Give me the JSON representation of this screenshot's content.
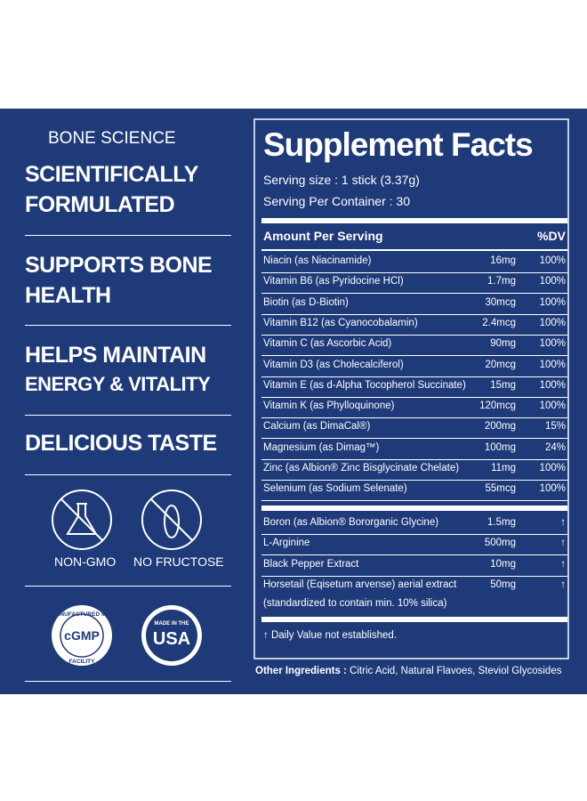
{
  "brand": "BONE SCIENCE",
  "claims": [
    [
      "SCIENTIFICALLY",
      "FORMULATED"
    ],
    [
      "SUPPORTS BONE",
      "HEALTH"
    ],
    [
      "HELPS MAINTAIN",
      "ENERGY & VITALITY"
    ],
    [
      "DELICIOUS TASTE"
    ]
  ],
  "icons": [
    "NON-GMO",
    "NO FRUCTOSE"
  ],
  "badges": {
    "cgmp": {
      "top": "MANUFACTURED IN A",
      "bottom": "FACILITY",
      "center": "cGMP"
    },
    "usa": {
      "top": "MADE IN THE",
      "center": "USA"
    }
  },
  "facts": {
    "title": "Supplement Facts",
    "serving_size": "Serving size : 1 stick (3.37g)",
    "servings": "Serving Per Container : 30",
    "header": {
      "amount": "Amount Per Serving",
      "dv": "%DV"
    },
    "rows": [
      [
        "Niacin (as Niacinamide)",
        "16mg",
        "100%"
      ],
      [
        "Vitamin B6 (as Pyridocine HCl)",
        "1.7mg",
        "100%"
      ],
      [
        "Biotin (as D-Biotin)",
        "30mcg",
        "100%"
      ],
      [
        "Vitamin B12 (as Cyanocobalamin)",
        "2.4mcg",
        "100%"
      ],
      [
        "Vitamin C (as Ascorbic Acid)",
        "90mg",
        "100%"
      ],
      [
        "Vitamin D3 (as Cholecalciferol)",
        "20mcg",
        "100%"
      ],
      [
        "Vitamin E (as d-Alpha Tocopherol Succinate)",
        "15mg",
        "100%"
      ],
      [
        "Vitamin K (as Phylloquinone)",
        "120mcg",
        "100%"
      ],
      [
        "Calcium (as DimaCal®)",
        "200mg",
        "15%"
      ],
      [
        "Magnesium (as Dimag™)",
        "100mg",
        "24%"
      ],
      [
        "Zinc (as Albion® Zinc Bisglycinate Chelate)",
        "11mg",
        "100%"
      ],
      [
        "Selenium (as Sodium Selenate)",
        "55mcg",
        "100%"
      ]
    ],
    "other_rows": [
      [
        "Boron (as Albion® Bororganic Glycine)",
        "1.5mg",
        "↑"
      ],
      [
        "L-Arginine",
        "500mg",
        "↑"
      ],
      [
        "Black Pepper Extract",
        "10mg",
        "↑"
      ],
      [
        "Horsetail (Eqisetum arvense) aerial extract",
        "50mg",
        "↑"
      ]
    ],
    "horsetail_note": "(standardized to contain min. 10% silica)",
    "footnote": "↑ Daily Value not established.",
    "other_label": "Other Ingredients :",
    "other_text": " Citric Acid, Natural Flavoes, Steviol Glycosides"
  }
}
